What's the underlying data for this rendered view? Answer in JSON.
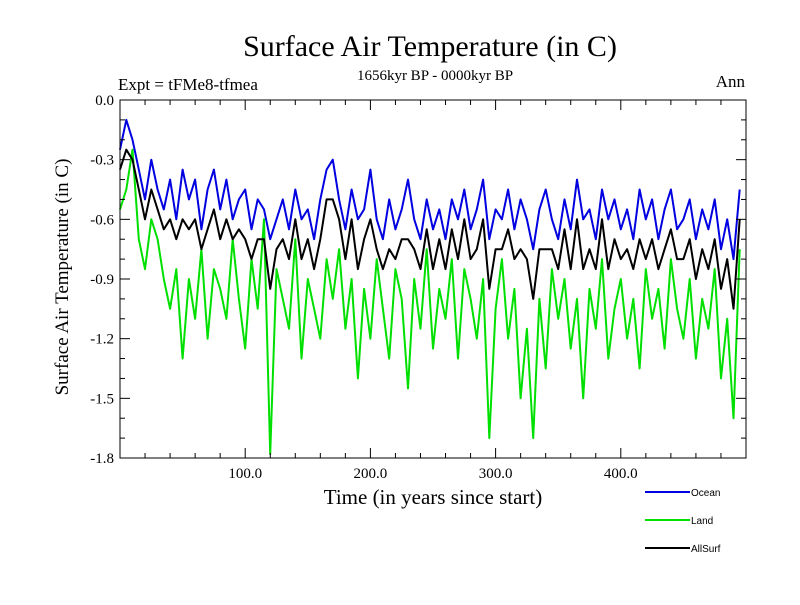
{
  "chart_data": {
    "type": "line",
    "title": "Surface Air Temperature (in C)",
    "subtitle": "1656kyr BP - 0000kyr BP",
    "left_label": "Expt = tFMe8-tfmea",
    "right_label": "Ann",
    "xlabel": "Time (in years since start)",
    "ylabel": "Surface Air Temperature (in C)",
    "xlim": [
      0,
      500
    ],
    "ylim": [
      -1.8,
      0.0
    ],
    "x_ticks": [
      {
        "value": 100,
        "label": "100.0"
      },
      {
        "value": 200,
        "label": "200.0"
      },
      {
        "value": 300,
        "label": "300.0"
      },
      {
        "value": 400,
        "label": "400.0"
      }
    ],
    "y_ticks": [
      {
        "value": 0.0,
        "label": "0.0"
      },
      {
        "value": -0.3,
        "label": "-0.3"
      },
      {
        "value": -0.6,
        "label": "-0.6"
      },
      {
        "value": -0.9,
        "label": "-0.9"
      },
      {
        "value": -1.2,
        "label": "-1.2"
      },
      {
        "value": -1.5,
        "label": "-1.5"
      },
      {
        "value": -1.8,
        "label": "-1.8"
      }
    ],
    "series": [
      {
        "name": "Land",
        "color": "#00e000",
        "x": [
          0,
          5,
          10,
          15,
          20,
          25,
          30,
          35,
          40,
          45,
          50,
          55,
          60,
          65,
          70,
          75,
          80,
          85,
          90,
          95,
          100,
          105,
          110,
          115,
          120,
          125,
          130,
          135,
          140,
          145,
          150,
          155,
          160,
          165,
          170,
          175,
          180,
          185,
          190,
          195,
          200,
          205,
          210,
          215,
          220,
          225,
          230,
          235,
          240,
          245,
          250,
          255,
          260,
          265,
          270,
          275,
          280,
          285,
          290,
          295,
          300,
          305,
          310,
          315,
          320,
          325,
          330,
          335,
          340,
          345,
          350,
          355,
          360,
          365,
          370,
          375,
          380,
          385,
          390,
          395,
          400,
          405,
          410,
          415,
          420,
          425,
          430,
          435,
          440,
          445,
          450,
          455,
          460,
          465,
          470,
          475,
          480,
          485,
          490,
          495
        ],
        "values": [
          -0.55,
          -0.45,
          -0.25,
          -0.7,
          -0.85,
          -0.6,
          -0.7,
          -0.9,
          -1.05,
          -0.85,
          -1.3,
          -0.9,
          -1.1,
          -0.75,
          -1.2,
          -0.85,
          -0.95,
          -1.1,
          -0.7,
          -1.0,
          -1.25,
          -0.8,
          -1.05,
          -0.6,
          -1.78,
          -0.85,
          -1.0,
          -1.15,
          -0.7,
          -1.3,
          -0.9,
          -1.05,
          -1.2,
          -0.8,
          -1.0,
          -0.75,
          -1.15,
          -0.9,
          -1.4,
          -0.95,
          -1.2,
          -0.8,
          -1.05,
          -1.3,
          -0.85,
          -1.0,
          -1.45,
          -0.9,
          -1.15,
          -0.75,
          -1.25,
          -0.95,
          -1.1,
          -0.8,
          -1.3,
          -0.85,
          -1.0,
          -1.2,
          -0.9,
          -1.7,
          -1.05,
          -0.8,
          -1.2,
          -0.95,
          -1.5,
          -1.15,
          -1.7,
          -1.0,
          -1.35,
          -0.85,
          -1.1,
          -0.9,
          -1.25,
          -1.0,
          -1.5,
          -0.95,
          -1.15,
          -0.8,
          -1.3,
          -1.05,
          -0.9,
          -1.2,
          -1.0,
          -1.35,
          -0.85,
          -1.1,
          -0.95,
          -1.25,
          -0.8,
          -1.05,
          -1.2,
          -0.9,
          -1.3,
          -1.0,
          -1.15,
          -0.85,
          -1.4,
          -1.1,
          -1.6,
          -0.75
        ]
      },
      {
        "name": "Ocean",
        "color": "#0000e0",
        "x": [
          0,
          5,
          10,
          15,
          20,
          25,
          30,
          35,
          40,
          45,
          50,
          55,
          60,
          65,
          70,
          75,
          80,
          85,
          90,
          95,
          100,
          105,
          110,
          115,
          120,
          125,
          130,
          135,
          140,
          145,
          150,
          155,
          160,
          165,
          170,
          175,
          180,
          185,
          190,
          195,
          200,
          205,
          210,
          215,
          220,
          225,
          230,
          235,
          240,
          245,
          250,
          255,
          260,
          265,
          270,
          275,
          280,
          285,
          290,
          295,
          300,
          305,
          310,
          315,
          320,
          325,
          330,
          335,
          340,
          345,
          350,
          355,
          360,
          365,
          370,
          375,
          380,
          385,
          390,
          395,
          400,
          405,
          410,
          415,
          420,
          425,
          430,
          435,
          440,
          445,
          450,
          455,
          460,
          465,
          470,
          475,
          480,
          485,
          490,
          495
        ],
        "values": [
          -0.25,
          -0.1,
          -0.2,
          -0.35,
          -0.5,
          -0.3,
          -0.45,
          -0.55,
          -0.4,
          -0.6,
          -0.35,
          -0.5,
          -0.4,
          -0.65,
          -0.45,
          -0.35,
          -0.55,
          -0.4,
          -0.6,
          -0.5,
          -0.45,
          -0.65,
          -0.5,
          -0.55,
          -0.7,
          -0.6,
          -0.5,
          -0.65,
          -0.45,
          -0.6,
          -0.55,
          -0.7,
          -0.5,
          -0.35,
          -0.3,
          -0.5,
          -0.65,
          -0.45,
          -0.6,
          -0.55,
          -0.35,
          -0.6,
          -0.7,
          -0.5,
          -0.65,
          -0.55,
          -0.4,
          -0.6,
          -0.7,
          -0.5,
          -0.65,
          -0.55,
          -0.7,
          -0.5,
          -0.6,
          -0.45,
          -0.65,
          -0.55,
          -0.4,
          -0.7,
          -0.55,
          -0.6,
          -0.45,
          -0.65,
          -0.5,
          -0.6,
          -0.75,
          -0.55,
          -0.45,
          -0.6,
          -0.7,
          -0.5,
          -0.65,
          -0.4,
          -0.6,
          -0.55,
          -0.7,
          -0.45,
          -0.6,
          -0.5,
          -0.65,
          -0.55,
          -0.7,
          -0.45,
          -0.6,
          -0.5,
          -0.7,
          -0.55,
          -0.45,
          -0.65,
          -0.6,
          -0.5,
          -0.7,
          -0.55,
          -0.65,
          -0.5,
          -0.75,
          -0.6,
          -0.8,
          -0.45
        ]
      },
      {
        "name": "AllSurf",
        "color": "#000000",
        "x": [
          0,
          5,
          10,
          15,
          20,
          25,
          30,
          35,
          40,
          45,
          50,
          55,
          60,
          65,
          70,
          75,
          80,
          85,
          90,
          95,
          100,
          105,
          110,
          115,
          120,
          125,
          130,
          135,
          140,
          145,
          150,
          155,
          160,
          165,
          170,
          175,
          180,
          185,
          190,
          195,
          200,
          205,
          210,
          215,
          220,
          225,
          230,
          235,
          240,
          245,
          250,
          255,
          260,
          265,
          270,
          275,
          280,
          285,
          290,
          295,
          300,
          305,
          310,
          315,
          320,
          325,
          330,
          335,
          340,
          345,
          350,
          355,
          360,
          365,
          370,
          375,
          380,
          385,
          390,
          395,
          400,
          405,
          410,
          415,
          420,
          425,
          430,
          435,
          440,
          445,
          450,
          455,
          460,
          465,
          470,
          475,
          480,
          485,
          490,
          495
        ],
        "values": [
          -0.35,
          -0.25,
          -0.3,
          -0.45,
          -0.6,
          -0.45,
          -0.55,
          -0.65,
          -0.6,
          -0.7,
          -0.6,
          -0.65,
          -0.6,
          -0.75,
          -0.65,
          -0.55,
          -0.7,
          -0.6,
          -0.7,
          -0.65,
          -0.7,
          -0.8,
          -0.7,
          -0.7,
          -0.95,
          -0.75,
          -0.7,
          -0.8,
          -0.6,
          -0.8,
          -0.7,
          -0.85,
          -0.7,
          -0.5,
          -0.5,
          -0.6,
          -0.8,
          -0.6,
          -0.85,
          -0.7,
          -0.6,
          -0.75,
          -0.85,
          -0.75,
          -0.8,
          -0.7,
          -0.7,
          -0.75,
          -0.85,
          -0.65,
          -0.85,
          -0.7,
          -0.85,
          -0.65,
          -0.8,
          -0.6,
          -0.8,
          -0.75,
          -0.6,
          -0.95,
          -0.75,
          -0.75,
          -0.65,
          -0.8,
          -0.75,
          -0.8,
          -1.0,
          -0.75,
          -0.75,
          -0.75,
          -0.85,
          -0.65,
          -0.85,
          -0.6,
          -0.85,
          -0.75,
          -0.85,
          -0.6,
          -0.85,
          -0.7,
          -0.8,
          -0.75,
          -0.85,
          -0.7,
          -0.8,
          -0.7,
          -0.85,
          -0.75,
          -0.65,
          -0.8,
          -0.8,
          -0.7,
          -0.9,
          -0.75,
          -0.85,
          -0.7,
          -0.95,
          -0.8,
          -1.05,
          -0.6
        ]
      }
    ],
    "legend": {
      "placement": "bottom-right",
      "entries": [
        "Ocean",
        "Land",
        "AllSurf"
      ]
    }
  }
}
